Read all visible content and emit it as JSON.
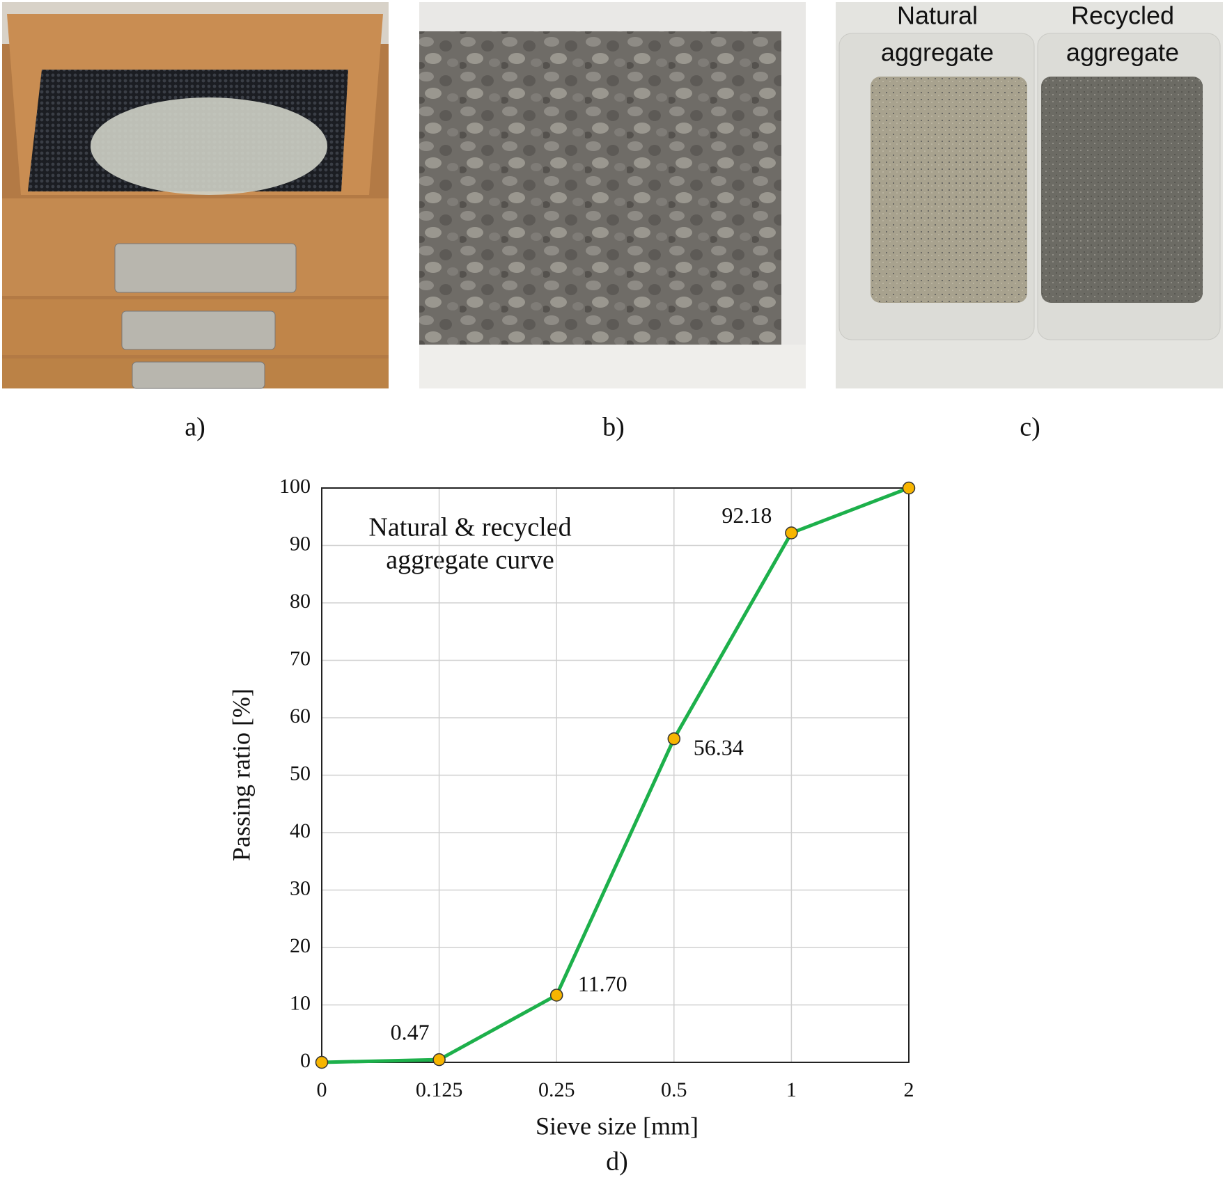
{
  "panels": {
    "a": "a)",
    "b": "b)",
    "c": "c)",
    "d": "d)",
    "photo_c_left": [
      "Natural",
      "aggregate"
    ],
    "photo_c_right": [
      "Recycled",
      "aggregate"
    ]
  },
  "chart_data": {
    "type": "line",
    "annotation": [
      "Natural & recycled",
      "aggregate curve"
    ],
    "x_label": "Sieve size [mm]",
    "y_label": "Passing ratio [%]",
    "categories": [
      "0",
      "0.125",
      "0.25",
      "0.5",
      "1",
      "2"
    ],
    "series": [
      {
        "color": "#1db04b",
        "marker_color": "#f7b500",
        "values": [
          0,
          0.47,
          11.7,
          56.34,
          92.18,
          100
        ],
        "value_labels": [
          null,
          "0.47",
          "11.70",
          "56.34",
          "92.18",
          null
        ]
      }
    ],
    "ylim": [
      0,
      100
    ],
    "yticks": [
      0,
      10,
      20,
      30,
      40,
      50,
      60,
      70,
      80,
      90,
      100
    ],
    "grid": true
  }
}
